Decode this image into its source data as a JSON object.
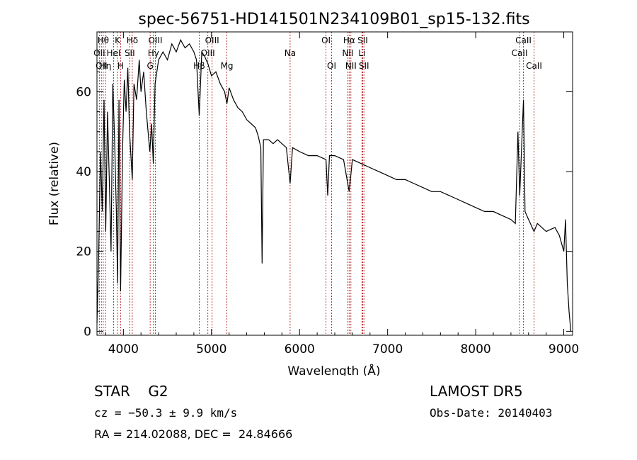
{
  "chart_data": {
    "type": "line",
    "title": "spec-56751-HD141501N234109B01_sp15-132.fits",
    "xlabel": "Wavelength (Å)",
    "ylabel": "Flux (relative)",
    "xlim": [
      3700,
      9100
    ],
    "ylim": [
      -1,
      75
    ],
    "x_ticks": [
      4000,
      5000,
      6000,
      7000,
      8000,
      9000
    ],
    "y_ticks": [
      0,
      20,
      40,
      60
    ],
    "grid": false,
    "series": [
      {
        "points": [
          [
            3700,
            2
          ],
          [
            3720,
            20
          ],
          [
            3740,
            45
          ],
          [
            3760,
            30
          ],
          [
            3780,
            58
          ],
          [
            3800,
            25
          ],
          [
            3820,
            55
          ],
          [
            3840,
            38
          ],
          [
            3860,
            20
          ],
          [
            3880,
            62
          ],
          [
            3900,
            48
          ],
          [
            3920,
            30
          ],
          [
            3934,
            12
          ],
          [
            3950,
            58
          ],
          [
            3968,
            10
          ],
          [
            3990,
            45
          ],
          [
            4010,
            63
          ],
          [
            4030,
            55
          ],
          [
            4050,
            66
          ],
          [
            4070,
            50
          ],
          [
            4101,
            38
          ],
          [
            4120,
            62
          ],
          [
            4150,
            58
          ],
          [
            4180,
            68
          ],
          [
            4200,
            60
          ],
          [
            4230,
            65
          ],
          [
            4260,
            55
          ],
          [
            4300,
            45
          ],
          [
            4320,
            52
          ],
          [
            4340,
            42
          ],
          [
            4360,
            62
          ],
          [
            4400,
            68
          ],
          [
            4450,
            70
          ],
          [
            4500,
            68
          ],
          [
            4550,
            72
          ],
          [
            4600,
            70
          ],
          [
            4650,
            73
          ],
          [
            4700,
            71
          ],
          [
            4750,
            72
          ],
          [
            4800,
            70
          ],
          [
            4830,
            68
          ],
          [
            4861,
            54
          ],
          [
            4890,
            70
          ],
          [
            4920,
            69
          ],
          [
            4960,
            67
          ],
          [
            5000,
            64
          ],
          [
            5050,
            65
          ],
          [
            5100,
            62
          ],
          [
            5150,
            60
          ],
          [
            5175,
            57
          ],
          [
            5200,
            61
          ],
          [
            5250,
            58
          ],
          [
            5300,
            56
          ],
          [
            5350,
            55
          ],
          [
            5400,
            53
          ],
          [
            5450,
            52
          ],
          [
            5500,
            51
          ],
          [
            5530,
            49
          ],
          [
            5560,
            46
          ],
          [
            5575,
            17
          ],
          [
            5590,
            48
          ],
          [
            5650,
            48
          ],
          [
            5700,
            47
          ],
          [
            5750,
            48
          ],
          [
            5800,
            47
          ],
          [
            5850,
            46
          ],
          [
            5893,
            37
          ],
          [
            5920,
            46
          ],
          [
            6000,
            45
          ],
          [
            6100,
            44
          ],
          [
            6200,
            44
          ],
          [
            6300,
            43
          ],
          [
            6320,
            34
          ],
          [
            6340,
            44
          ],
          [
            6400,
            44
          ],
          [
            6500,
            43
          ],
          [
            6563,
            35
          ],
          [
            6600,
            43
          ],
          [
            6700,
            42
          ],
          [
            6800,
            41
          ],
          [
            6900,
            40
          ],
          [
            7000,
            39
          ],
          [
            7100,
            38
          ],
          [
            7200,
            38
          ],
          [
            7300,
            37
          ],
          [
            7400,
            36
          ],
          [
            7500,
            35
          ],
          [
            7600,
            35
          ],
          [
            7700,
            34
          ],
          [
            7800,
            33
          ],
          [
            7900,
            32
          ],
          [
            8000,
            31
          ],
          [
            8100,
            30
          ],
          [
            8200,
            30
          ],
          [
            8300,
            29
          ],
          [
            8400,
            28
          ],
          [
            8450,
            27
          ],
          [
            8480,
            50
          ],
          [
            8500,
            34
          ],
          [
            8542,
            58
          ],
          [
            8560,
            30
          ],
          [
            8600,
            28
          ],
          [
            8662,
            25
          ],
          [
            8700,
            27
          ],
          [
            8800,
            25
          ],
          [
            8900,
            26
          ],
          [
            8950,
            24
          ],
          [
            9000,
            20
          ],
          [
            9020,
            28
          ],
          [
            9040,
            12
          ],
          [
            9060,
            5
          ],
          [
            9080,
            0
          ]
        ]
      }
    ],
    "lines": [
      {
        "w": 3727,
        "label": "OII",
        "row": 1
      },
      {
        "w": 3750,
        "label": "OII",
        "row": 2
      },
      {
        "w": 3771,
        "label": "Hθ",
        "row": 0
      },
      {
        "w": 3797,
        "label": "Hη",
        "row": 2
      },
      {
        "w": 3889,
        "label": "HeI",
        "row": 1
      },
      {
        "w": 3934,
        "label": "K",
        "row": 0
      },
      {
        "w": 3968,
        "label": "H",
        "row": 2
      },
      {
        "w": 4072,
        "label": "SII",
        "row": 1
      },
      {
        "w": 4101,
        "label": "Hδ",
        "row": 0
      },
      {
        "w": 4304,
        "label": "G",
        "row": 2
      },
      {
        "w": 4341,
        "label": "Hγ",
        "row": 1
      },
      {
        "w": 4363,
        "label": "OIII",
        "row": 0
      },
      {
        "w": 4861,
        "label": "Hβ",
        "row": 2
      },
      {
        "w": 4959,
        "label": "OIII",
        "row": 1
      },
      {
        "w": 5007,
        "label": "OIII",
        "row": 0
      },
      {
        "w": 5175,
        "label": "Mg",
        "row": 2
      },
      {
        "w": 5893,
        "label": "Na",
        "row": 1
      },
      {
        "w": 6300,
        "label": "OI",
        "row": 0
      },
      {
        "w": 6364,
        "label": "OI",
        "row": 2
      },
      {
        "w": 6548,
        "label": "NII",
        "row": 1
      },
      {
        "w": 6563,
        "label": "Hα",
        "row": 0
      },
      {
        "w": 6583,
        "label": "NII",
        "row": 2
      },
      {
        "w": 6708,
        "label": "Li",
        "row": 1
      },
      {
        "w": 6717,
        "label": "SII",
        "row": 0
      },
      {
        "w": 6731,
        "label": "SII",
        "row": 2
      },
      {
        "w": 8498,
        "label": "CaII",
        "row": 1
      },
      {
        "w": 8542,
        "label": "CaII",
        "row": 0
      },
      {
        "w": 8662,
        "label": "CaII",
        "row": 2
      }
    ],
    "line_color": "#b22222"
  },
  "info": {
    "class_type": "STAR",
    "subclass": "G2",
    "survey": "LAMOST DR5",
    "cz": "cz = −50.3 ± 9.9 km/s",
    "obs_date": "Obs-Date: 20140403",
    "radec": "RA = 214.02088, DEC =  24.84666"
  }
}
